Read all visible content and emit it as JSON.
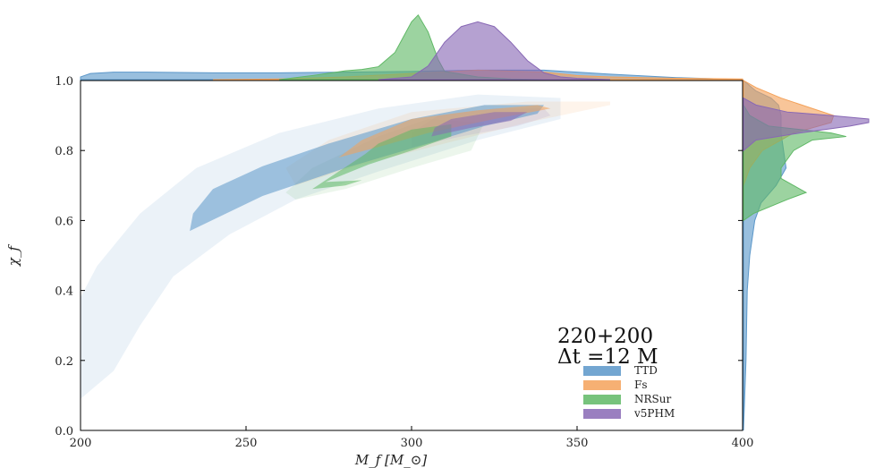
{
  "chart_data": {
    "type": "area",
    "xlabel": "M_f [M_⊙]",
    "ylabel": "χ_f",
    "xlim": [
      200,
      400
    ],
    "ylim": [
      0.0,
      1.0
    ],
    "x_ticks": [
      "200",
      "250",
      "300",
      "350",
      "400"
    ],
    "y_ticks": [
      "0.0",
      "0.2",
      "0.4",
      "0.6",
      "0.8",
      "1.0"
    ],
    "annotation": [
      "220+200",
      "Δt =12 M"
    ],
    "legend_position": "lower-right",
    "series": [
      {
        "name": "TTD",
        "color": "#5b97c9",
        "region_90": [
          [
            233,
            0.57
          ],
          [
            255,
            0.67
          ],
          [
            280,
            0.75
          ],
          [
            305,
            0.82
          ],
          [
            322,
            0.87
          ],
          [
            338,
            0.905
          ],
          [
            340,
            0.93
          ],
          [
            322,
            0.93
          ],
          [
            300,
            0.89
          ],
          [
            275,
            0.82
          ],
          [
            255,
            0.755
          ],
          [
            240,
            0.69
          ],
          [
            234,
            0.62
          ]
        ],
        "region_outer": [
          [
            200,
            0.09
          ],
          [
            210,
            0.17
          ],
          [
            218,
            0.3
          ],
          [
            228,
            0.44
          ],
          [
            245,
            0.56
          ],
          [
            265,
            0.66
          ],
          [
            290,
            0.74
          ],
          [
            320,
            0.83
          ],
          [
            345,
            0.89
          ],
          [
            345,
            0.95
          ],
          [
            320,
            0.96
          ],
          [
            290,
            0.92
          ],
          [
            260,
            0.85
          ],
          [
            235,
            0.75
          ],
          [
            218,
            0.62
          ],
          [
            205,
            0.47
          ],
          [
            200,
            0.38
          ]
        ]
      },
      {
        "name": "Fs",
        "color": "#f4a25a",
        "region_90": [
          [
            278,
            0.78
          ],
          [
            290,
            0.81
          ],
          [
            305,
            0.85
          ],
          [
            325,
            0.89
          ],
          [
            342,
            0.92
          ],
          [
            338,
            0.93
          ],
          [
            320,
            0.915
          ],
          [
            300,
            0.89
          ],
          [
            285,
            0.83
          ]
        ],
        "region_outer": [
          [
            265,
            0.7
          ],
          [
            285,
            0.76
          ],
          [
            310,
            0.82
          ],
          [
            335,
            0.88
          ],
          [
            360,
            0.93
          ],
          [
            360,
            0.94
          ],
          [
            335,
            0.94
          ],
          [
            300,
            0.91
          ],
          [
            275,
            0.83
          ],
          [
            262,
            0.75
          ]
        ]
      },
      {
        "name": "NRSur",
        "color": "#5fb865",
        "region_90": [
          [
            287,
            0.76
          ],
          [
            300,
            0.8
          ],
          [
            312,
            0.84
          ],
          [
            312,
            0.875
          ],
          [
            300,
            0.86
          ],
          [
            290,
            0.82
          ],
          [
            286,
            0.79
          ],
          [
            270,
            0.69
          ],
          [
            280,
            0.7
          ],
          [
            285,
            0.715
          ],
          [
            274,
            0.71
          ]
        ],
        "region_outer": [
          [
            265,
            0.66
          ],
          [
            280,
            0.69
          ],
          [
            300,
            0.75
          ],
          [
            318,
            0.8
          ],
          [
            322,
            0.88
          ],
          [
            305,
            0.89
          ],
          [
            290,
            0.84
          ],
          [
            270,
            0.75
          ],
          [
            262,
            0.68
          ]
        ]
      },
      {
        "name": "v5PHM",
        "color": "#8868b5",
        "region_90": [
          [
            306,
            0.84
          ],
          [
            318,
            0.865
          ],
          [
            330,
            0.885
          ],
          [
            335,
            0.91
          ],
          [
            325,
            0.91
          ],
          [
            312,
            0.89
          ],
          [
            307,
            0.865
          ]
        ],
        "region_outer": [
          [
            300,
            0.81
          ],
          [
            315,
            0.84
          ],
          [
            332,
            0.87
          ],
          [
            342,
            0.9
          ],
          [
            340,
            0.92
          ],
          [
            325,
            0.92
          ],
          [
            308,
            0.9
          ],
          [
            300,
            0.85
          ]
        ]
      }
    ],
    "marginal_x": [
      {
        "name": "TTD",
        "x": [
          200,
          203,
          210,
          220,
          240,
          260,
          280,
          300,
          320,
          340,
          360,
          380,
          400
        ],
        "density": [
          0.04,
          0.09,
          0.11,
          0.11,
          0.1,
          0.1,
          0.11,
          0.12,
          0.14,
          0.14,
          0.08,
          0.03,
          0.0
        ]
      },
      {
        "name": "Fs",
        "x": [
          240,
          260,
          280,
          300,
          320,
          340,
          350,
          360,
          380,
          400
        ],
        "density": [
          0.0,
          0.01,
          0.04,
          0.09,
          0.14,
          0.11,
          0.06,
          0.04,
          0.02,
          0.01
        ]
      },
      {
        "name": "NRSur",
        "x": [
          260,
          270,
          280,
          285,
          290,
          295,
          300,
          302,
          305,
          308,
          310,
          320,
          330,
          340
        ],
        "density": [
          0.0,
          0.06,
          0.13,
          0.15,
          0.19,
          0.4,
          0.85,
          0.95,
          0.7,
          0.3,
          0.12,
          0.04,
          0.01,
          0.0
        ]
      },
      {
        "name": "v5PHM",
        "x": [
          290,
          300,
          305,
          310,
          315,
          320,
          325,
          330,
          335,
          340,
          345,
          350,
          360
        ],
        "density": [
          0.0,
          0.04,
          0.2,
          0.55,
          0.78,
          0.85,
          0.78,
          0.55,
          0.28,
          0.1,
          0.04,
          0.02,
          0.0
        ]
      }
    ],
    "marginal_y": [
      {
        "name": "TTD",
        "y": [
          0.0,
          0.2,
          0.4,
          0.5,
          0.6,
          0.65,
          0.7,
          0.75,
          0.8,
          0.85,
          0.9,
          0.93,
          0.95,
          0.97,
          1.0
        ],
        "density": [
          0.0,
          0.02,
          0.03,
          0.05,
          0.09,
          0.14,
          0.26,
          0.34,
          0.32,
          0.3,
          0.3,
          0.28,
          0.22,
          0.1,
          0.0
        ]
      },
      {
        "name": "Fs",
        "y": [
          0.7,
          0.75,
          0.8,
          0.85,
          0.88,
          0.9,
          0.92,
          0.95,
          0.98,
          1.0
        ],
        "density": [
          0.0,
          0.05,
          0.15,
          0.4,
          0.7,
          0.72,
          0.55,
          0.3,
          0.1,
          0.0
        ]
      },
      {
        "name": "NRSur",
        "y": [
          0.6,
          0.62,
          0.66,
          0.68,
          0.7,
          0.72,
          0.75,
          0.8,
          0.83,
          0.84,
          0.85,
          0.87,
          0.9,
          0.93
        ],
        "density": [
          0.0,
          0.08,
          0.35,
          0.5,
          0.4,
          0.3,
          0.3,
          0.4,
          0.55,
          0.82,
          0.7,
          0.2,
          0.05,
          0.0
        ]
      },
      {
        "name": "v5PHM",
        "y": [
          0.8,
          0.83,
          0.85,
          0.87,
          0.88,
          0.89,
          0.9,
          0.91,
          0.93,
          0.95
        ],
        "density": [
          0.0,
          0.1,
          0.45,
          0.85,
          1.0,
          1.0,
          0.7,
          0.35,
          0.1,
          0.0
        ]
      }
    ]
  }
}
